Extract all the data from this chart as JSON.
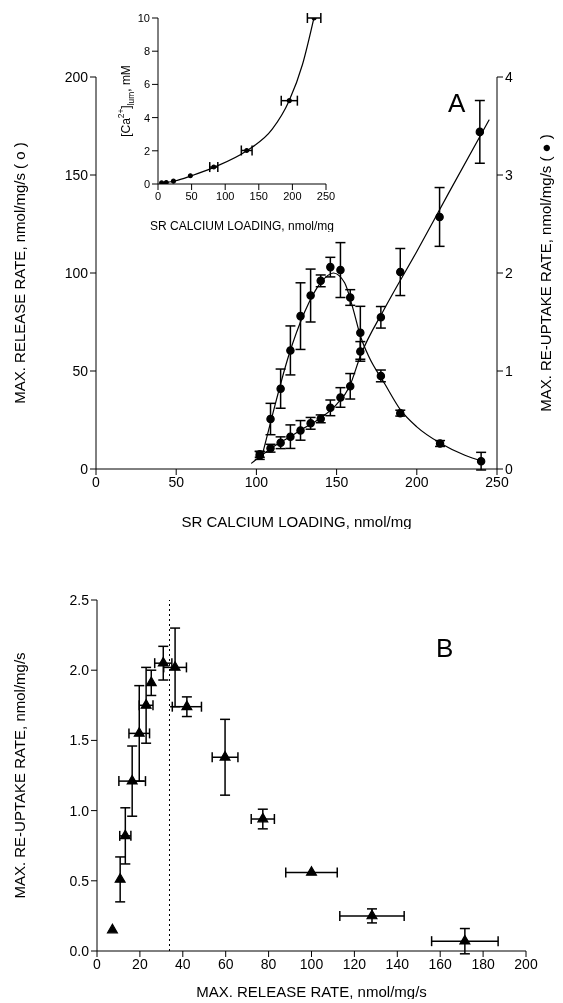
{
  "chart_data": [
    {
      "type": "scatter",
      "xlabel": "SR CALCIUM LOADING, nmol/mg",
      "ylabel": "MAX. RELEASE RATE, nmol/mg/s ( o )",
      "y2label": "MAX. RE-UPTAKE RATE, nmol/mg/s ( ● )",
      "xlim": [
        0,
        250
      ],
      "xticks": [
        0,
        50,
        100,
        150,
        200,
        250
      ],
      "ylim": [
        0,
        200
      ],
      "yticks": [
        0,
        50,
        100,
        150,
        200
      ],
      "y2lim": [
        0,
        4
      ],
      "y2ticks": [
        0,
        1,
        2,
        3,
        4
      ],
      "annotations": [
        "A"
      ],
      "series": [
        {
          "type": "scatter",
          "color": "#000000",
          "marker": "circle",
          "x": [
            102.1,
            108.8,
            115.1,
            121.2,
            127.5,
            133.8,
            140.1,
            146.1,
            152.4,
            158.5,
            164.8,
            177.6,
            189.7,
            214.2,
            239.3
          ],
          "values": [
            6.9,
            10.6,
            13.4,
            16.5,
            19.7,
            23.3,
            25.6,
            31.2,
            36.5,
            42.2,
            60.0,
            77.4,
            100.5,
            128.6,
            172
          ],
          "errors": [
            2,
            2,
            3,
            6,
            5,
            3,
            2,
            4,
            5,
            6.5,
            5,
            5.5,
            12,
            15,
            16
          ]
        },
        {
          "type": "scatter",
          "color": "#000000",
          "marker": "circle",
          "axis": "y2",
          "x": [
            102.1,
            108.8,
            115.1,
            121.2,
            127.5,
            133.8,
            140.1,
            146.1,
            152.4,
            158.5,
            164.8,
            177.6,
            189.7,
            214.5,
            240.1
          ],
          "values": [
            0.15,
            0.51,
            0.82,
            1.21,
            1.56,
            1.77,
            1.92,
            2.06,
            2.03,
            1.75,
            1.39,
            0.95,
            0.57,
            0.26,
            0.08
          ],
          "errors": [
            0.03,
            0.16,
            0.2,
            0.25,
            0.34,
            0.27,
            0.06,
            0.1,
            0.28,
            0.08,
            0.27,
            0.06,
            0.03,
            0.03,
            0.09
          ]
        },
        {
          "type": "line",
          "color": "#000000",
          "marker": "none",
          "x": [
            97,
            110,
            120,
            130,
            140,
            150,
            158,
            165,
            180,
            200,
            220,
            245
          ],
          "values": [
            3,
            11,
            16,
            21,
            26,
            33,
            42,
            58,
            82,
            111,
            141,
            178
          ]
        },
        {
          "type": "line",
          "color": "#000000",
          "marker": "none",
          "axis": "y2",
          "x": [
            103,
            110,
            120,
            130,
            140,
            148,
            155,
            160,
            165,
            170,
            180,
            190,
            200,
            215,
            230,
            241
          ],
          "values": [
            0.1,
            0.55,
            1.15,
            1.6,
            1.9,
            2.0,
            1.9,
            1.65,
            1.35,
            1.15,
            0.87,
            0.6,
            0.43,
            0.26,
            0.14,
            0.08
          ]
        }
      ]
    },
    {
      "type": "scatter",
      "xlabel": "SR CALCIUM LOADING, nmol/mg",
      "ylabel": "[Ca$^{2+}$]$_{lum}$, mM",
      "xlim": [
        0,
        250
      ],
      "xticks": [
        0,
        50,
        100,
        150,
        200,
        250
      ],
      "ylim": [
        0,
        10
      ],
      "yticks": [
        0,
        2,
        4,
        6,
        8,
        10
      ],
      "series": [
        {
          "type": "scatter",
          "color": "#000000",
          "marker": "circle",
          "x": [
            5.4,
            12.3,
            23,
            48.2,
            83,
            132,
            195.4,
            232.3
          ],
          "values": [
            0.07,
            0.09,
            0.17,
            0.5,
            1.02,
            2.02,
            5.02,
            10.0
          ],
          "xerrors": [
            null,
            null,
            null,
            null,
            6,
            8,
            12,
            10
          ]
        },
        {
          "type": "line",
          "color": "#000000",
          "marker": "none",
          "x": [
            5,
            25,
            50,
            83,
            132,
            170,
            195,
            215,
            232
          ],
          "values": [
            0.05,
            0.18,
            0.5,
            1.0,
            2.0,
            3.3,
            5.0,
            7.2,
            10.0
          ]
        }
      ]
    },
    {
      "type": "scatter",
      "xlabel": "MAX. RELEASE RATE, nmol/mg/s",
      "ylabel": "MAX. RE-UPTAKE RATE, nmol/mg/s",
      "xlim": [
        0,
        200
      ],
      "xticks": [
        0,
        20,
        40,
        60,
        80,
        100,
        120,
        140,
        160,
        180,
        200
      ],
      "ylim": [
        0,
        2.5
      ],
      "yticks": [
        {
          "value": 0,
          "label": "0.0"
        },
        {
          "value": 0.5,
          "label": "0.5"
        },
        {
          "value": 1,
          "label": "1.0"
        },
        {
          "value": 1.5,
          "label": "1.5"
        },
        {
          "value": 2,
          "label": "2.0"
        },
        {
          "value": 2.5,
          "label": "2.5"
        }
      ],
      "annotations": [
        "B"
      ],
      "ref_lines": [
        {
          "axis": "x",
          "value": 33.8,
          "color": "#000000",
          "line_style": "dotted"
        }
      ],
      "series": [
        {
          "type": "scatter",
          "color": "#000000",
          "marker": "triangle",
          "x": [
            7.2,
            10.8,
            13.2,
            16.4,
            19.7,
            22.9,
            25.3,
            30.9
          ],
          "values": [
            0.15,
            0.51,
            0.82,
            1.21,
            1.55,
            1.75,
            1.91,
            2.05
          ],
          "errors": [
            null,
            0.16,
            0.2,
            0.25,
            0.34,
            0.27,
            0.09,
            0.12
          ],
          "xerrors": [
            null,
            null,
            2.6,
            6.2,
            4.8,
            3.2,
            null,
            4
          ]
        },
        {
          "type": "scatter",
          "color": "#000000",
          "marker": "triangle",
          "x": [
            36.4,
            41.9,
            59.7,
            77.3,
            100,
            128.2,
            171.5
          ],
          "values": [
            2.02,
            1.74,
            1.38,
            0.94,
            0.56,
            0.25,
            0.07
          ],
          "errors": [
            0.28,
            0.07,
            0.27,
            0.07,
            null,
            0.05,
            0.09
          ],
          "xerrors": [
            5.3,
            6.8,
            6,
            5.4,
            12,
            15,
            15.5
          ]
        }
      ]
    }
  ]
}
